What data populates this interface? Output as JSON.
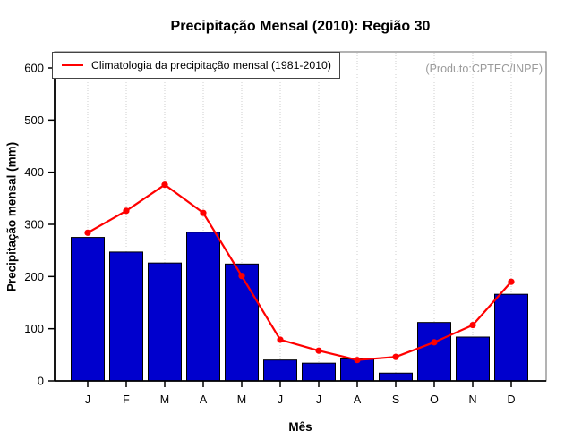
{
  "chart_data": {
    "type": "bar",
    "title": "Precipitação Mensal (2010): Região 30",
    "xlabel": "Mês",
    "ylabel": "Precipitação mensal (mm)",
    "annotation": "(Produto:CPTEC/INPE)",
    "categories": [
      "J",
      "F",
      "M",
      "A",
      "M",
      "J",
      "J",
      "A",
      "S",
      "O",
      "N",
      "D"
    ],
    "series": [
      {
        "name": "Precipitação mensal 2010",
        "type": "bar",
        "values": [
          275,
          247,
          226,
          285,
          224,
          40,
          34,
          42,
          15,
          112,
          84,
          166
        ]
      },
      {
        "name": "Climatologia da precipitação mensal (1981-2010)",
        "type": "line",
        "values": [
          284,
          326,
          376,
          322,
          201,
          79,
          58,
          40,
          46,
          74,
          107,
          190
        ]
      }
    ],
    "legend": {
      "label": "Climatologia da precipitação mensal (1981-2010)",
      "position": "top-left"
    },
    "ylim": [
      0,
      600
    ],
    "yticks": [
      0,
      100,
      200,
      300,
      400,
      500,
      600
    ],
    "grid": "vertical-dotted",
    "colors": {
      "bar": "#0000CD",
      "bar_border": "#000000",
      "line": "#FF0000",
      "grid": "#CFCFCF",
      "box": "#808080",
      "axis": "#000000",
      "annotation": "#9A9A9A"
    }
  }
}
